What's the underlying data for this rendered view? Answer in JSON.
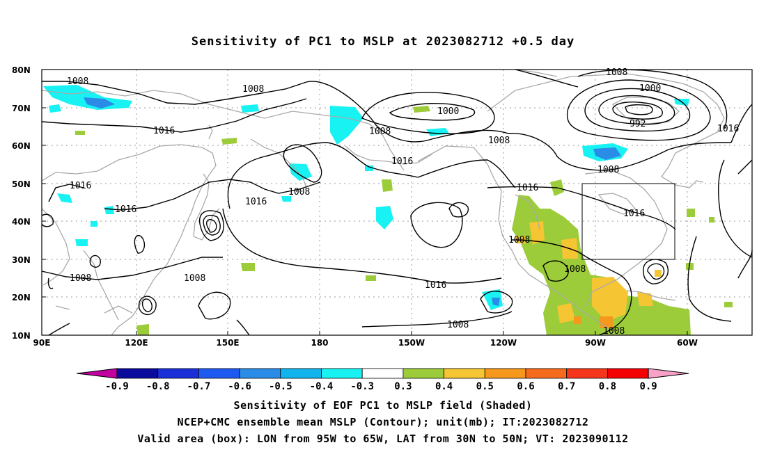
{
  "title": "Sensitivity of PC1 to MSLP at 2023082712 +0.5 day",
  "lat_labels": [
    "80N",
    "70N",
    "60N",
    "50N",
    "40N",
    "30N",
    "20N",
    "10N"
  ],
  "lon_labels": [
    "90E",
    "120E",
    "150E",
    "180",
    "150W",
    "120W",
    "90W",
    "60W"
  ],
  "contour_labels": [
    "1008",
    "1008",
    "1016",
    "1000",
    "1008",
    "1008",
    "1000",
    "992",
    "1016",
    "1016",
    "1016",
    "1008",
    "1016",
    "1008",
    "1008",
    "1016",
    "1008",
    "1016",
    "1008",
    "1008",
    "1008"
  ],
  "colorbar": {
    "labels": [
      "-0.9",
      "-0.8",
      "-0.7",
      "-0.6",
      "-0.5",
      "-0.4",
      "-0.3",
      "0.3",
      "0.4",
      "0.5",
      "0.6",
      "0.7",
      "0.8",
      "0.9"
    ],
    "colors": [
      "#c0009f",
      "#0a0a9c",
      "#1a2fd8",
      "#1e5af0",
      "#2a8ce6",
      "#12b4ee",
      "#19f2f2",
      "#ffffff",
      "#9ccc3a",
      "#f5c534",
      "#f5981c",
      "#f56a1c",
      "#f5361c",
      "#f50000",
      "#f7a0c8"
    ]
  },
  "captions": [
    "Sensitivity of EOF PC1 to MSLP field (Shaded)",
    "NCEP+CMC ensemble mean MSLP (Contour); unit(mb); IT:2023082712",
    "Valid area (box): LON from 95W to 65W, LAT from 30N to 50N; VT: 2023090112"
  ]
}
